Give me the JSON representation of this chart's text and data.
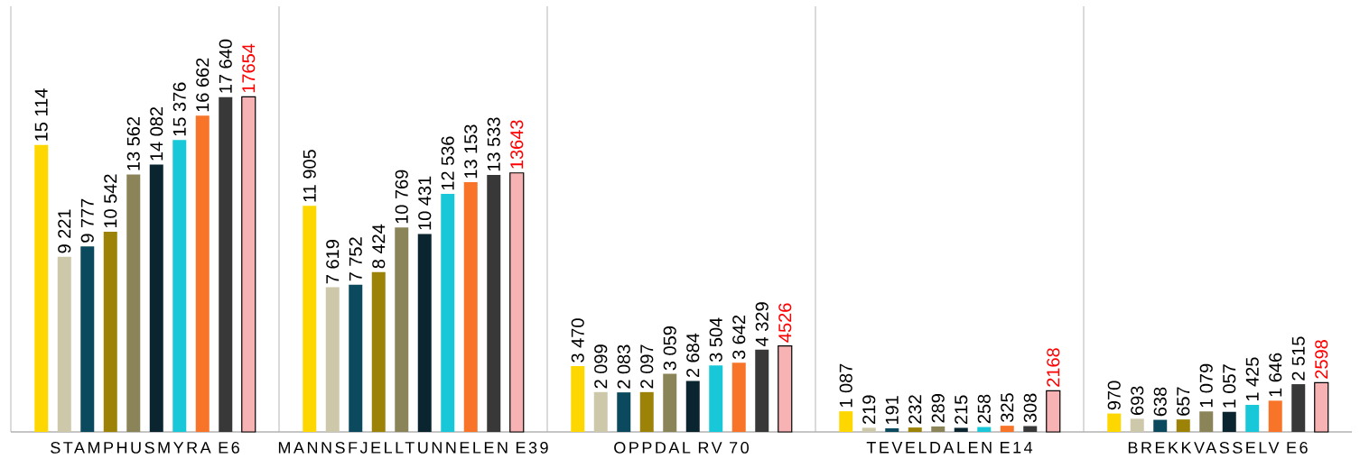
{
  "chart_data": {
    "type": "bar",
    "categories": [
      "STAMPHUSMYRA E6",
      "MANNSFJELLTUNNELEN E39",
      "OPPDAL RV 70",
      "TEVELDALEN E14",
      "BREKKVASSELV E6"
    ],
    "grid": "x",
    "series": [
      {
        "color": "#ffd700",
        "values": [
          15114,
          11905,
          3470,
          1087,
          970
        ],
        "value_labels": [
          "15 114",
          "11 905",
          "3 470",
          "1 087",
          "970"
        ]
      },
      {
        "color": "#cdc8a9",
        "values": [
          9221,
          7619,
          2099,
          219,
          693
        ],
        "value_labels": [
          "9 221",
          "7 619",
          "2 099",
          "219",
          "693"
        ]
      },
      {
        "color": "#0b4a5e",
        "values": [
          9777,
          7752,
          2083,
          191,
          638
        ],
        "value_labels": [
          "9 777",
          "7 752",
          "2 083",
          "191",
          "638"
        ]
      },
      {
        "color": "#9c8308",
        "values": [
          10542,
          8424,
          2097,
          232,
          657
        ],
        "value_labels": [
          "10 542",
          "8 424",
          "2 097",
          "232",
          "657"
        ]
      },
      {
        "color": "#8b8458",
        "values": [
          13562,
          10769,
          3059,
          289,
          1079
        ],
        "value_labels": [
          "13 562",
          "10 769",
          "3 059",
          "289",
          "1 079"
        ]
      },
      {
        "color": "#0a2530",
        "values": [
          14082,
          10431,
          2684,
          215,
          1057
        ],
        "value_labels": [
          "14 082",
          "10 431",
          "2 684",
          "215",
          "1 057"
        ]
      },
      {
        "color": "#18c8d8",
        "values": [
          15376,
          12536,
          3504,
          258,
          1425
        ],
        "value_labels": [
          "15 376",
          "12 536",
          "3 504",
          "258",
          "1 425"
        ]
      },
      {
        "color": "#f77428",
        "values": [
          16662,
          13153,
          3642,
          325,
          1646
        ],
        "value_labels": [
          "16 662",
          "13 153",
          "3 642",
          "325",
          "1 646"
        ]
      },
      {
        "color": "#383838",
        "values": [
          17640,
          13533,
          4329,
          308,
          2515
        ],
        "value_labels": [
          "17 640",
          "13 533",
          "4 329",
          "308",
          "2 515"
        ]
      },
      {
        "color": "#f7b3b3",
        "values": [
          17654,
          13643,
          4526,
          2168,
          2598
        ],
        "value_labels": [
          "17654",
          "13643",
          "4526",
          "2168",
          "2598"
        ]
      }
    ]
  }
}
